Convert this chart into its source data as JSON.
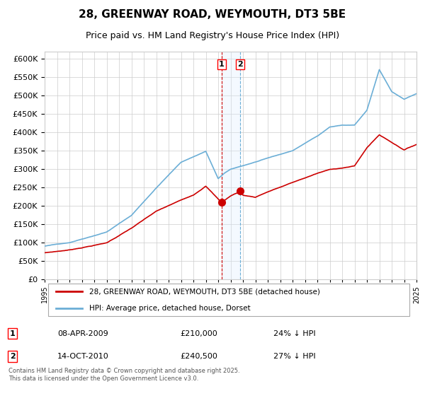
{
  "title": "28, GREENWAY ROAD, WEYMOUTH, DT3 5BE",
  "subtitle": "Price paid vs. HM Land Registry's House Price Index (HPI)",
  "legend_line1": "28, GREENWAY ROAD, WEYMOUTH, DT3 5BE (detached house)",
  "legend_line2": "HPI: Average price, detached house, Dorset",
  "table_rows": [
    {
      "num": "1",
      "date": "08-APR-2009",
      "price": "£210,000",
      "note": "24% ↓ HPI"
    },
    {
      "num": "2",
      "date": "14-OCT-2010",
      "price": "£240,500",
      "note": "27% ↓ HPI"
    }
  ],
  "footnote": "Contains HM Land Registry data © Crown copyright and database right 2025.\nThis data is licensed under the Open Government Licence v3.0.",
  "hpi_color": "#6baed6",
  "price_color": "#cc0000",
  "vline1_color": "#cc0000",
  "vline2_color": "#6baed6",
  "vband_color": "#ddeeff",
  "marker1_year": 2009.27,
  "marker2_year": 2010.79,
  "marker1_price": 210000,
  "marker2_price": 240500,
  "ylim": [
    0,
    620000
  ],
  "ytick_step": 50000,
  "start_year": 1995,
  "end_year": 2025,
  "background_color": "#ffffff",
  "grid_color": "#cccccc"
}
